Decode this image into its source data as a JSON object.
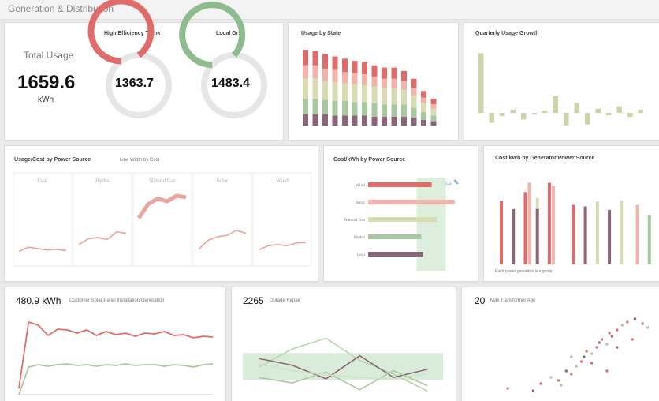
{
  "header": {
    "title": "Generation & Distribution"
  },
  "kpi": {
    "total_usage": {
      "label": "Total Usage",
      "value": "1659.6",
      "unit": "kWh"
    },
    "high_efficiency_trunk": {
      "label": "High Efficiency Trunk",
      "value": "1363.7",
      "fraction": 0.9,
      "color": "#e06b6b"
    },
    "local_grid": {
      "label": "Local Grid",
      "value": "1483.4",
      "fraction": 0.87,
      "color": "#8fbc8f"
    }
  },
  "usage_by_state": {
    "title": "Usage by State",
    "colors": [
      "#e06b6b",
      "#f2b4aa",
      "#d9dbb2",
      "#a8c9a0",
      "#8c6678"
    ],
    "stacks": [
      [
        14,
        12,
        18,
        14,
        10
      ],
      [
        13,
        12,
        18,
        14,
        10
      ],
      [
        13,
        11,
        17,
        13,
        10
      ],
      [
        12,
        11,
        17,
        13,
        9
      ],
      [
        12,
        10,
        16,
        13,
        9
      ],
      [
        11,
        10,
        16,
        12,
        9
      ],
      [
        11,
        10,
        15,
        12,
        9
      ],
      [
        10,
        9,
        15,
        12,
        8
      ],
      [
        10,
        9,
        14,
        11,
        8
      ],
      [
        10,
        9,
        14,
        11,
        8
      ],
      [
        9,
        8,
        13,
        11,
        8
      ],
      [
        8,
        7,
        11,
        9,
        7
      ],
      [
        6,
        5,
        8,
        7,
        5
      ],
      [
        5,
        4,
        6,
        5,
        4
      ]
    ]
  },
  "quarterly_growth": {
    "title": "Quarterly Usage Growth",
    "color": "#cfd3a8",
    "values": [
      72,
      -12,
      -4,
      4,
      -8,
      -2,
      3,
      20,
      -15,
      12,
      -14,
      5,
      -3,
      8,
      -5,
      4
    ]
  },
  "usage_cost_source": {
    "title": "Usage/Cost by Power Source",
    "subtitle": "Line Width by Cost",
    "color": "#eba59a",
    "facets": [
      {
        "label": "Coal",
        "values": [
          12,
          18,
          16,
          14,
          15,
          13
        ]
      },
      {
        "label": "Hydro",
        "values": [
          22,
          30,
          32,
          29,
          40,
          38
        ]
      },
      {
        "label": "Natural Gas",
        "values": [
          60,
          80,
          88,
          84,
          92,
          90
        ]
      },
      {
        "label": "Solar",
        "values": [
          15,
          28,
          33,
          35,
          42,
          38
        ]
      },
      {
        "label": "Wind",
        "values": [
          14,
          20,
          22,
          20,
          24,
          25
        ]
      }
    ]
  },
  "cost_kwh_source": {
    "title": "Cost/kWh by Power Source",
    "categories": [
      "Wind",
      "Solar",
      "Natural Gas",
      "Hydro",
      "Coal"
    ],
    "values": [
      72,
      98,
      78,
      60,
      62
    ],
    "colors": [
      "#e06b6b",
      "#f2b4aa",
      "#d9dbb2",
      "#a8c9a0",
      "#8c6678"
    ],
    "xmax": 100,
    "band_from": 55,
    "band_to": 88,
    "band_color": "#ddeedd"
  },
  "cost_kwh_generator": {
    "title": "Cost/kWh by Generator/Power Source",
    "footnote": "Each power generator is a group",
    "ymax": 100,
    "colors": [
      "#e06b6b",
      "#f2b4aa",
      "#d9dbb2",
      "#a8c9a0",
      "#8c6678"
    ],
    "groups": [
      {
        "bars": [
          75,
          0,
          0,
          0,
          0
        ]
      },
      {
        "bars": [
          0,
          0,
          0,
          0,
          65
        ]
      },
      {
        "bars": [
          85,
          96,
          0,
          0,
          0
        ]
      },
      {
        "bars": [
          0,
          0,
          78,
          0,
          65
        ]
      },
      {
        "bars": [
          96,
          92,
          0,
          0,
          0
        ]
      },
      {
        "bars": [
          0,
          0,
          0,
          0,
          0
        ]
      },
      {
        "bars": [
          70,
          0,
          0,
          0,
          0
        ]
      },
      {
        "bars": [
          0,
          0,
          0,
          0,
          68
        ]
      },
      {
        "bars": [
          0,
          0,
          74,
          0,
          0
        ]
      },
      {
        "bars": [
          0,
          0,
          0,
          0,
          64
        ]
      },
      {
        "bars": [
          0,
          0,
          75,
          0,
          0
        ]
      },
      {
        "bars": [
          0,
          70,
          0,
          0,
          0
        ]
      },
      {
        "bars": [
          0,
          0,
          0,
          58,
          0
        ]
      }
    ]
  },
  "solar_panel": {
    "value": "480.9 kWh",
    "label": "Customer Solar Panel Installation/Generation",
    "series": [
      {
        "color": "#e06b6b",
        "values": [
          8,
          92,
          88,
          75,
          83,
          82,
          78,
          82,
          75,
          80,
          76,
          78,
          74,
          78,
          77,
          80,
          75,
          76,
          72,
          74,
          73
        ]
      },
      {
        "color": "#a8c9a0",
        "values": [
          0,
          35,
          38,
          36,
          38,
          39,
          37,
          38,
          36,
          38,
          37,
          39,
          37,
          38,
          38,
          36,
          38,
          37,
          35,
          38,
          39
        ]
      }
    ]
  },
  "outage_repair": {
    "value": "2265",
    "label": "Outage Repair",
    "band": [
      22,
      55
    ],
    "band_color": "#d9ecd9",
    "series": [
      {
        "color": "#b4d6ab",
        "values": [
          45,
          72,
          88,
          55,
          35,
          10
        ]
      },
      {
        "color": "#8c6678",
        "values": [
          58,
          48,
          28,
          62,
          30,
          42
        ]
      },
      {
        "color": "#a8c9a0",
        "values": [
          30,
          22,
          38,
          12,
          40,
          18
        ]
      },
      {
        "color": "#cfe4c8",
        "values": [
          50,
          40,
          34,
          30,
          28,
          35
        ]
      }
    ]
  },
  "transformer_age": {
    "value": "20",
    "label": "Max Transformer Age",
    "points": [
      [
        5,
        8,
        "#e06b6b"
      ],
      [
        15,
        5,
        "#8c6678"
      ],
      [
        18,
        14,
        "#e06b6b"
      ],
      [
        22,
        22,
        "#a8c9a0"
      ],
      [
        25,
        18,
        "#e06b6b"
      ],
      [
        28,
        30,
        "#8c6678"
      ],
      [
        30,
        26,
        "#e06b6b"
      ],
      [
        32,
        36,
        "#a8c9a0"
      ],
      [
        34,
        42,
        "#e06b6b"
      ],
      [
        35,
        48,
        "#8c6678"
      ],
      [
        36,
        55,
        "#e06b6b"
      ],
      [
        38,
        52,
        "#a8c9a0"
      ],
      [
        40,
        60,
        "#e06b6b"
      ],
      [
        41,
        66,
        "#8c6678"
      ],
      [
        42,
        70,
        "#e06b6b"
      ],
      [
        44,
        64,
        "#a8c9a0"
      ],
      [
        45,
        78,
        "#e06b6b"
      ],
      [
        46,
        74,
        "#8c6678"
      ],
      [
        48,
        82,
        "#e06b6b"
      ],
      [
        50,
        88,
        "#a8c9a0"
      ],
      [
        52,
        92,
        "#e06b6b"
      ],
      [
        55,
        96,
        "#8c6678"
      ],
      [
        58,
        90,
        "#e06b6b"
      ],
      [
        60,
        85,
        "#a8c9a0"
      ],
      [
        38,
        40,
        "#e06b6b"
      ],
      [
        30,
        48,
        "#a8c9a0"
      ],
      [
        54,
        70,
        "#e06b6b"
      ],
      [
        48,
        60,
        "#8c6678"
      ],
      [
        26,
        12,
        "#a8c9a0"
      ],
      [
        44,
        30,
        "#e06b6b"
      ]
    ]
  }
}
